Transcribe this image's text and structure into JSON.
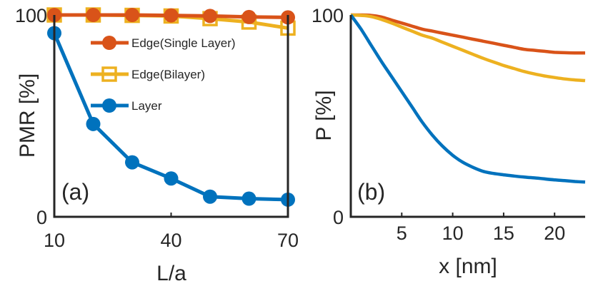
{
  "colors": {
    "edge_single": "#D95319",
    "edge_bilayer": "#EDB120",
    "layer": "#0072BD",
    "axis": "#262626"
  },
  "chart_data": [
    {
      "type": "line",
      "panel_label": "(a)",
      "xlabel": "L/a",
      "ylabel": "PMR [%]",
      "xlim": [
        10,
        70
      ],
      "ylim": [
        0,
        100
      ],
      "xticks": [
        "10",
        "40",
        "70"
      ],
      "yticks": [
        "0",
        "100"
      ],
      "grid": false,
      "legend_position": "top-right",
      "x": [
        10,
        20,
        30,
        40,
        50,
        60,
        70
      ],
      "series": [
        {
          "name": "Edge(Single Layer)",
          "marker": "circle",
          "color": "#D95319",
          "values": [
            100,
            100,
            100,
            99.8,
            99.5,
            99,
            98.8
          ]
        },
        {
          "name": "Edge(Bilayer)",
          "marker": "square",
          "color": "#EDB120",
          "values": [
            100,
            100,
            99.8,
            99.5,
            98.2,
            96.5,
            93.5
          ]
        },
        {
          "name": "Layer",
          "marker": "circle",
          "color": "#0072BD",
          "values": [
            91,
            46,
            27,
            19,
            10,
            9,
            8.5
          ]
        }
      ]
    },
    {
      "type": "line",
      "panel_label": "(b)",
      "xlabel": "x [nm]",
      "ylabel": "P [%]",
      "xlim": [
        0,
        23
      ],
      "ylim": [
        0,
        100
      ],
      "xticks": [
        "5",
        "10",
        "15",
        "20"
      ],
      "yticks": [
        "0",
        "100"
      ],
      "grid": false,
      "x": [
        0,
        1,
        2,
        3,
        4,
        5,
        6,
        7,
        8,
        9,
        10,
        11,
        12,
        13,
        14,
        15,
        16,
        17,
        18,
        19,
        20,
        21,
        22,
        23
      ],
      "series": [
        {
          "color": "#D95319",
          "values": [
            100,
            100,
            99.8,
            99,
            97.5,
            96,
            94.5,
            93,
            92,
            91,
            90,
            89,
            88,
            87,
            86,
            85,
            84,
            83,
            82.5,
            82,
            81.5,
            81.3,
            81.2,
            81.2
          ]
        },
        {
          "color": "#EDB120",
          "values": [
            100,
            99.8,
            99.2,
            97.8,
            96,
            94,
            92,
            90,
            88.5,
            86.5,
            84.5,
            82.5,
            80.5,
            78.5,
            76.7,
            75,
            73.5,
            72,
            70.8,
            69.8,
            69,
            68.3,
            67.8,
            67.5
          ]
        },
        {
          "color": "#0072BD",
          "values": [
            100,
            93,
            85,
            77,
            69.5,
            62,
            54.5,
            47,
            40.5,
            35,
            30.5,
            27,
            24.5,
            22.5,
            21.5,
            20.8,
            20.2,
            19.7,
            19.3,
            18.8,
            18.3,
            17.9,
            17.5,
            17.2
          ]
        }
      ]
    }
  ]
}
